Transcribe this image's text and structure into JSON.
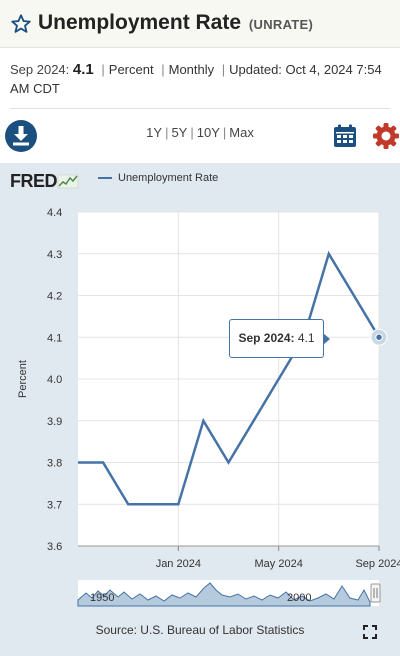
{
  "header": {
    "title": "Unemployment Rate",
    "series_code": "(UNRATE)"
  },
  "meta": {
    "date_label": "Sep 2024:",
    "value": "4.1",
    "sep": "|",
    "units": "Percent",
    "frequency": "Monthly",
    "updated_label": "Updated:",
    "updated_value": "Oct 4, 2024",
    "updated_time": "7:54 AM CDT"
  },
  "toolbar": {
    "ranges": [
      "1Y",
      "5Y",
      "10Y",
      "Max"
    ],
    "range_sep": "|"
  },
  "logo": {
    "text": "FRED"
  },
  "tooltip": {
    "date": "Sep 2024:",
    "value": "4.1"
  },
  "navigator": {
    "left_label": "1950",
    "right_label": "2000"
  },
  "footer": {
    "source": "Source: U.S. Bureau of Labor Statistics"
  },
  "colors": {
    "series": "#4572a7",
    "panel": "#e1e9f0",
    "accent_red": "#c0392b",
    "accent_blue": "#1a4f80"
  },
  "chart_data": {
    "type": "line",
    "series": [
      {
        "name": "Unemployment Rate",
        "x": [
          "Sep 2023",
          "Oct 2023",
          "Nov 2023",
          "Dec 2023",
          "Jan 2024",
          "Feb 2024",
          "Mar 2024",
          "Apr 2024",
          "May 2024",
          "Jun 2024",
          "Jul 2024",
          "Aug 2024",
          "Sep 2024"
        ],
        "values": [
          3.8,
          3.8,
          3.7,
          3.7,
          3.7,
          3.9,
          3.8,
          3.9,
          4.0,
          4.1,
          4.3,
          4.2,
          4.1
        ]
      }
    ],
    "xticks": [
      {
        "label": "Jan 2024",
        "index": 4
      },
      {
        "label": "May 2024",
        "index": 8
      },
      {
        "label": "Sep 2024",
        "index": 12
      }
    ],
    "ylabel": "Percent",
    "ylim": [
      3.6,
      4.4
    ],
    "yticks": [
      3.6,
      3.7,
      3.8,
      3.9,
      4.0,
      4.1,
      4.2,
      4.3,
      4.4
    ],
    "ytick_labels": [
      "3.6",
      "3.7",
      "3.8",
      "3.9",
      "4.0",
      "4.1",
      "4.2",
      "4.3",
      "4.4"
    ],
    "grid": true,
    "legend": "top-left"
  }
}
